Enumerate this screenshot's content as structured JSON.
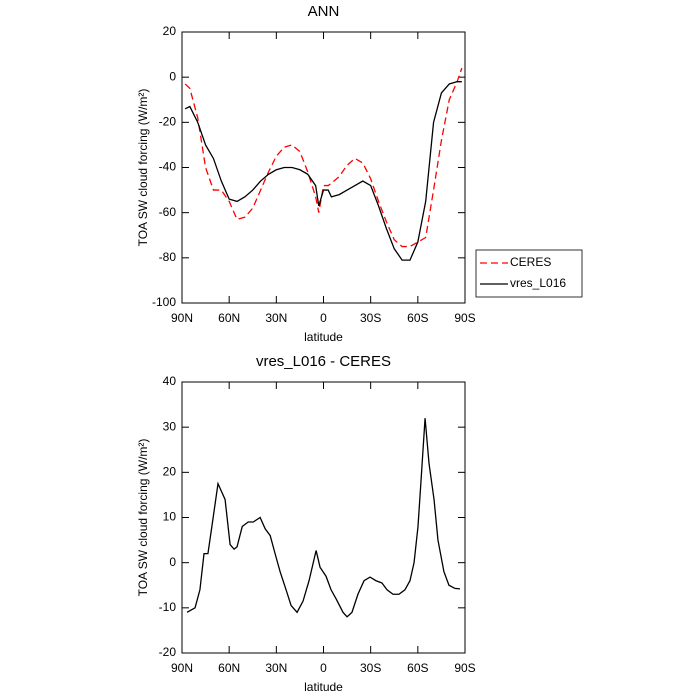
{
  "chart_data": [
    {
      "type": "line",
      "title": "ANN",
      "x_label": "latitude",
      "y_label": "TOA SW cloud forcing (W/m²)",
      "x": [
        88,
        85,
        80,
        75,
        70,
        65,
        60,
        55,
        50,
        45,
        40,
        35,
        30,
        25,
        20,
        15,
        10,
        5,
        3,
        0,
        -3,
        -5,
        -10,
        -15,
        -20,
        -25,
        -30,
        -35,
        -40,
        -45,
        -50,
        -55,
        -60,
        -65,
        -70,
        -75,
        -80,
        -85,
        -88
      ],
      "series": [
        {
          "name": "CERES",
          "color": "#ff0000",
          "dash": true,
          "values": [
            -3,
            -5,
            -18,
            -40,
            -50,
            -50,
            -55,
            -63,
            -62,
            -58,
            -50,
            -42,
            -35,
            -31,
            -30,
            -33,
            -42,
            -53,
            -60,
            -48,
            -48,
            -47,
            -44,
            -39,
            -36,
            -38,
            -45,
            -55,
            -64,
            -72,
            -75,
            -75,
            -73,
            -71,
            -50,
            -28,
            -10,
            -2,
            4
          ]
        },
        {
          "name": "vres_L016",
          "color": "#000000",
          "dash": false,
          "values": [
            -14,
            -13,
            -20,
            -30,
            -36,
            -46,
            -54,
            -55,
            -53,
            -50,
            -46,
            -43,
            -41,
            -40,
            -40,
            -41,
            -43,
            -48,
            -57,
            -50,
            -50,
            -53,
            -52,
            -50,
            -48,
            -46,
            -48,
            -57,
            -67,
            -76,
            -81,
            -81,
            -73,
            -55,
            -20,
            -7,
            -3,
            -2,
            -2
          ]
        }
      ],
      "xlim": [
        90,
        -90
      ],
      "xticks": [
        {
          "value": 90,
          "label": "90N"
        },
        {
          "value": 60,
          "label": "60N"
        },
        {
          "value": 30,
          "label": "30N"
        },
        0,
        {
          "value": -30,
          "label": "30S"
        },
        {
          "value": -60,
          "label": "60S"
        },
        {
          "value": -90,
          "label": "90S"
        }
      ],
      "ylim": [
        -100,
        20
      ],
      "yticks": [
        -100,
        -80,
        -60,
        -40,
        -20,
        0,
        20
      ],
      "legend": "outside-right"
    },
    {
      "type": "line",
      "title": "vres_L016 - CERES",
      "x_label": "latitude",
      "y_label": "TOA SW cloud forcing (W/m²)",
      "x": [
        86.8,
        81.7,
        78.6,
        76,
        73.5,
        71,
        67.1,
        62.6,
        59.4,
        56.9,
        55,
        51.7,
        47.9,
        44.7,
        40.3,
        37.1,
        33.9,
        30.8,
        27.6,
        23.8,
        20.6,
        16.8,
        13,
        9.2,
        4.7,
        2.2,
        -1.6,
        -4.8,
        -8,
        -12.4,
        -15,
        -18.1,
        -21.9,
        -25.8,
        -29.6,
        -33.4,
        -37.2,
        -40.4,
        -44.2,
        -48,
        -51.8,
        -55,
        -57.6,
        -60.1,
        -62,
        -64.6,
        -67.1,
        -70.3,
        -72.8,
        -76.6,
        -79.8,
        -83.6,
        -86.8
      ],
      "series": [
        {
          "color": "#000000",
          "dash": false,
          "values": [
            -11,
            -10,
            -6,
            2,
            2,
            8,
            17.5,
            14,
            4,
            3,
            3.5,
            8,
            9,
            9,
            10,
            7.5,
            6,
            2,
            -2,
            -6,
            -9.5,
            -11,
            -8.5,
            -4,
            2.7,
            -1,
            -3,
            -6,
            -8,
            -11,
            -12,
            -11,
            -7,
            -4,
            -3.2,
            -4,
            -4.5,
            -6,
            -7,
            -7,
            -6,
            -4,
            0,
            8,
            18,
            32,
            22,
            14,
            5,
            -2,
            -5,
            -5.7,
            -5.8
          ]
        }
      ],
      "xlim": [
        90,
        -90
      ],
      "xticks": [
        {
          "value": 90,
          "label": "90N"
        },
        {
          "value": 60,
          "label": "60N"
        },
        {
          "value": 30,
          "label": "30N"
        },
        0,
        {
          "value": -30,
          "label": "30S"
        },
        {
          "value": -60,
          "label": "60S"
        },
        {
          "value": -90,
          "label": "90S"
        }
      ],
      "ylim": [
        -20,
        40
      ],
      "yticks": [
        -20,
        -10,
        0,
        10,
        20,
        30,
        40
      ]
    }
  ]
}
